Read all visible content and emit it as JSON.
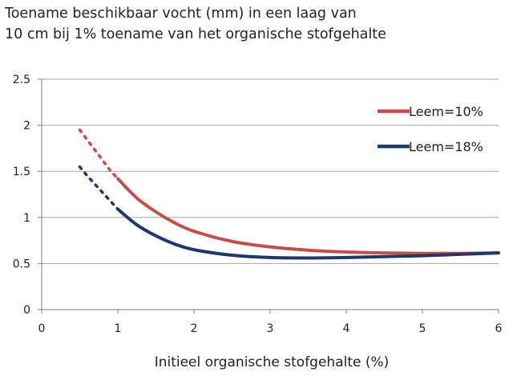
{
  "chart_data": {
    "type": "line",
    "title_lines": [
      "Toename beschikbaar vocht (mm) in een laag van",
      "10 cm bij 1% toename van het organische stofgehalte"
    ],
    "xlabel": "Initieel organische stofgehalte (%)",
    "ylabel": "",
    "xlim": [
      0,
      6
    ],
    "ylim": [
      0,
      2.5
    ],
    "xticks": [
      "0",
      "1",
      "2",
      "3",
      "4",
      "5",
      "6"
    ],
    "yticks": [
      "0",
      "0.5",
      "1",
      "1.5",
      "2",
      "2.5"
    ],
    "grid": "horizontal",
    "legend_position": "top-right",
    "series": [
      {
        "name": "Leem=10%",
        "color": "#c0504d",
        "dotted_x": [
          0.5,
          0.6,
          0.7,
          0.8,
          0.9,
          1.0
        ],
        "dotted_y": [
          1.95,
          1.84,
          1.73,
          1.62,
          1.51,
          1.42
        ],
        "x": [
          1.0,
          1.25,
          1.5,
          1.75,
          2.0,
          2.5,
          3.0,
          3.5,
          4.0,
          4.5,
          5.0,
          5.5,
          6.0
        ],
        "y": [
          1.42,
          1.21,
          1.06,
          0.94,
          0.85,
          0.74,
          0.68,
          0.645,
          0.625,
          0.615,
          0.61,
          0.61,
          0.615
        ]
      },
      {
        "name": "Leem=18%",
        "color": "#1f3864",
        "dotted_x": [
          0.5,
          0.6,
          0.7,
          0.8,
          0.9,
          1.0
        ],
        "dotted_y": [
          1.55,
          1.45,
          1.36,
          1.27,
          1.18,
          1.09
        ],
        "x": [
          1.0,
          1.25,
          1.5,
          1.75,
          2.0,
          2.5,
          3.0,
          3.5,
          4.0,
          4.5,
          5.0,
          5.5,
          6.0
        ],
        "y": [
          1.09,
          0.92,
          0.8,
          0.71,
          0.65,
          0.59,
          0.565,
          0.56,
          0.565,
          0.575,
          0.585,
          0.6,
          0.615
        ]
      }
    ]
  }
}
